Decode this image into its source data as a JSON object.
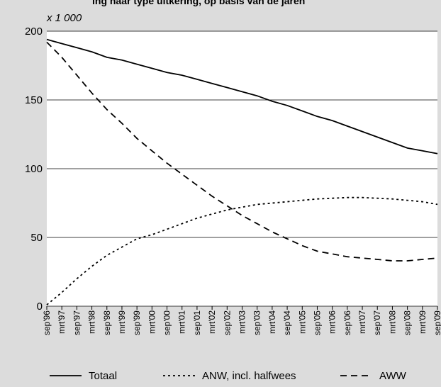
{
  "chart_data": {
    "type": "line",
    "title": "ing naar type uitkering, op basis van de jaren",
    "ylabel": "x 1 000",
    "xlabel": "",
    "ylim": [
      0,
      200
    ],
    "yticks": [
      0,
      50,
      100,
      150,
      200
    ],
    "grid": true,
    "legend_position": "bottom",
    "x": [
      "sep'96",
      "mrt'97",
      "sep'97",
      "mrt'98",
      "sep'98",
      "mrt'99",
      "sep'99",
      "mrt'00",
      "sep'00",
      "mrt'01",
      "sep'01",
      "mrt'02",
      "sep'02",
      "mrt'03",
      "sep'03",
      "mrt'04",
      "sep'04",
      "mrt'05",
      "sep'05",
      "mrt'06",
      "sep'06",
      "mrt'07",
      "sep'07",
      "mrt'08",
      "sep'08",
      "mrt'09",
      "sep'09"
    ],
    "series": [
      {
        "name": "Totaal",
        "style": "solid",
        "values": [
          194,
          191,
          188,
          185,
          181,
          179,
          176,
          173,
          170,
          168,
          165,
          162,
          159,
          156,
          153,
          149,
          146,
          142,
          138,
          135,
          131,
          127,
          123,
          119,
          115,
          113,
          111
        ]
      },
      {
        "name": "ANW, incl. halfwees",
        "style": "dotted",
        "values": [
          1,
          10,
          20,
          29,
          37,
          43,
          49,
          52,
          56,
          60,
          64,
          67,
          70,
          72,
          74,
          75,
          76,
          77,
          78,
          78.5,
          79,
          79,
          78.5,
          78,
          77,
          76,
          74
        ]
      },
      {
        "name": "AWW",
        "style": "dashed",
        "values": [
          192,
          181,
          168,
          155,
          143,
          133,
          122,
          113,
          104,
          96,
          88,
          80,
          73,
          66,
          60,
          54,
          49,
          44,
          40,
          38,
          36,
          35,
          34,
          33,
          33,
          34,
          35
        ]
      }
    ]
  }
}
